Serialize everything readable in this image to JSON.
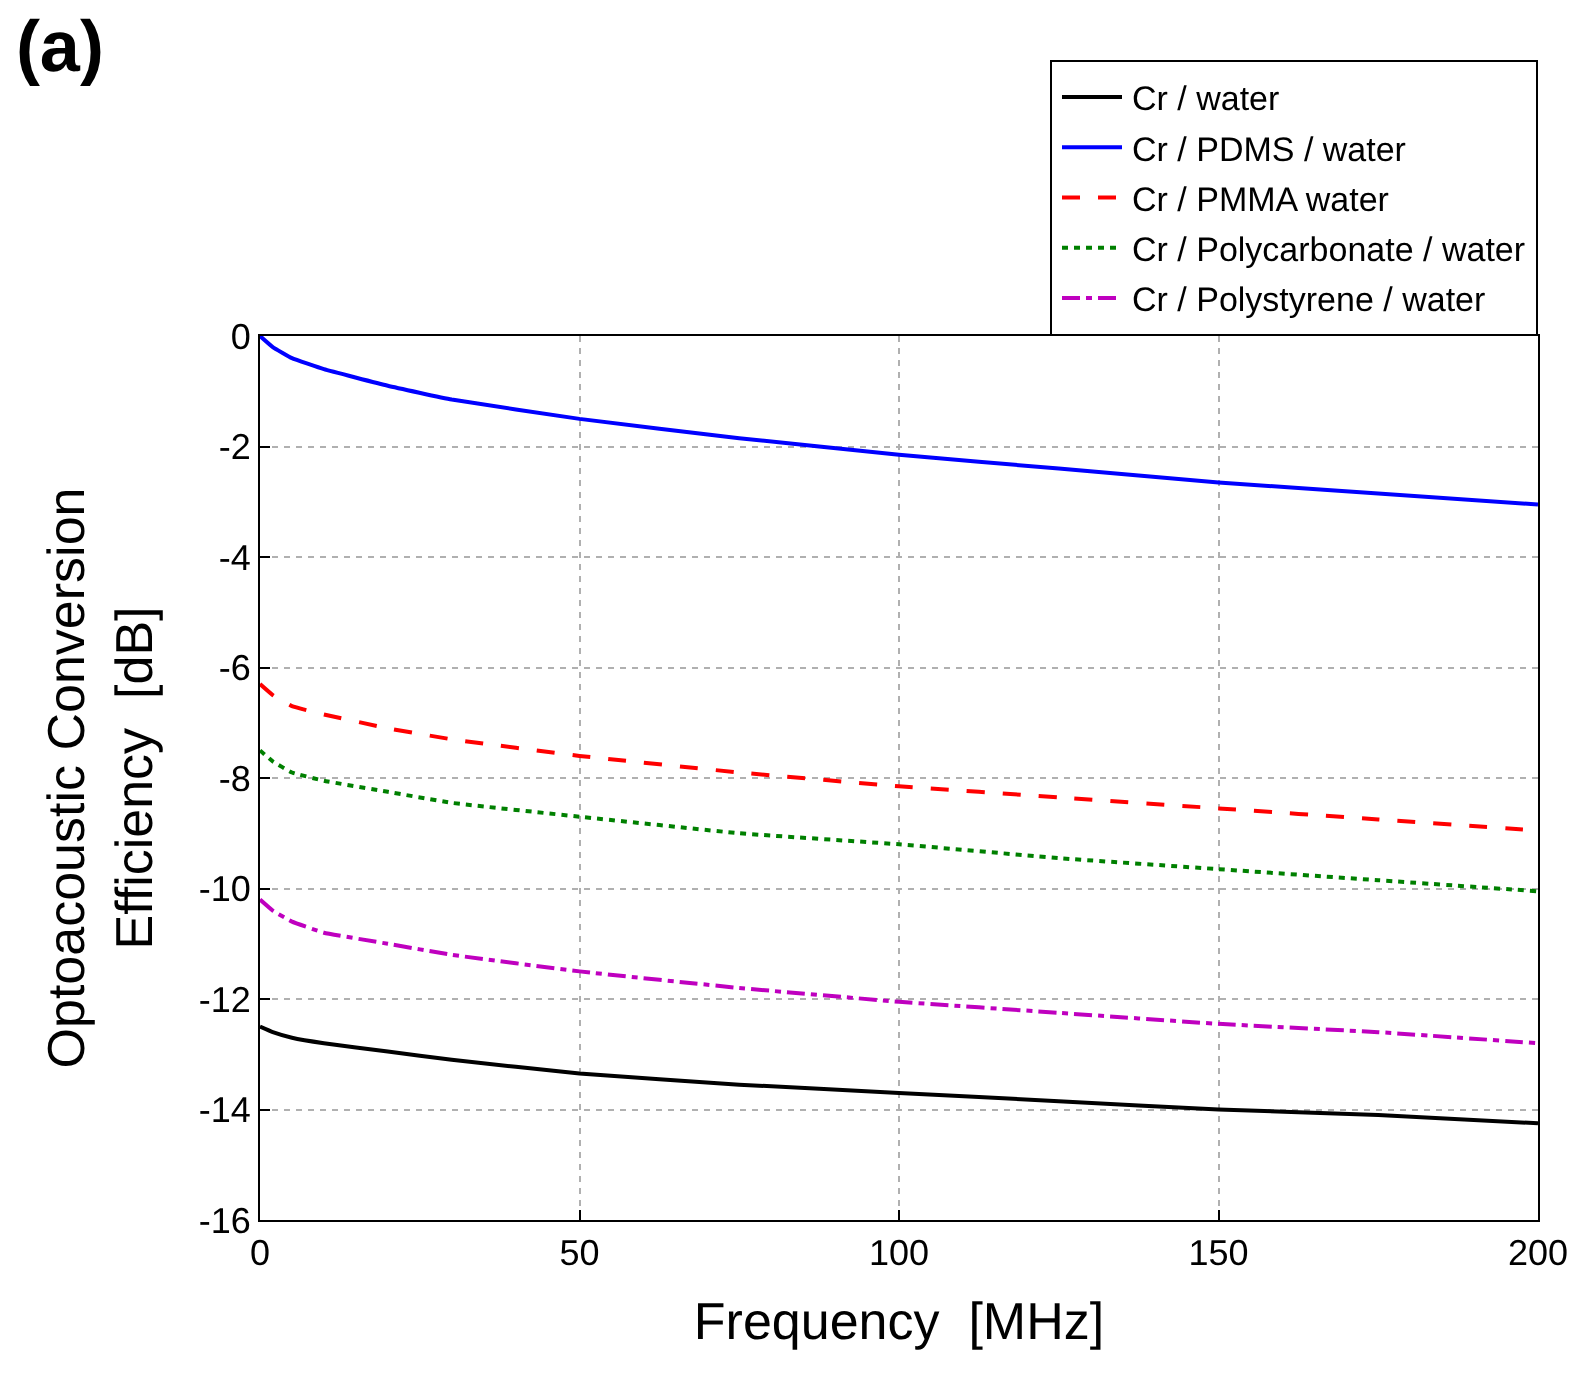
{
  "chart_data": {
    "type": "line",
    "title": "(a)",
    "xlabel": "Frequency  [MHz]",
    "ylabel": "Optoacoustic Conversion\nEfficiency  [dB]",
    "xlim": [
      0,
      200
    ],
    "xticks": [
      0,
      50,
      100,
      150,
      200
    ],
    "ylim": [
      -16,
      0
    ],
    "yticks": [
      -16,
      -14,
      -12,
      -10,
      -8,
      -6,
      -4,
      -2,
      0
    ],
    "grid": true,
    "legend": "top right",
    "marker": "none",
    "x": [
      0,
      2,
      5,
      10,
      20,
      30,
      50,
      75,
      100,
      125,
      150,
      175,
      200
    ],
    "series": [
      {
        "name": "Cr / water",
        "color": "#000000",
        "line_style": "solid",
        "values": [
          -12.5,
          -12.6,
          -12.7,
          -12.8,
          -12.95,
          -13.1,
          -13.35,
          -13.55,
          -13.7,
          -13.85,
          -14.0,
          -14.1,
          -14.25
        ]
      },
      {
        "name": "Cr / PDMS / water",
        "color": "#0000ff",
        "line_style": "solid",
        "values": [
          0,
          -0.2,
          -0.4,
          -0.6,
          -0.9,
          -1.15,
          -1.5,
          -1.85,
          -2.15,
          -2.4,
          -2.65,
          -2.85,
          -3.05
        ]
      },
      {
        "name": "Cr / PMMA water",
        "color": "#ff0000",
        "line_style": "dashed",
        "values": [
          -6.3,
          -6.5,
          -6.7,
          -6.85,
          -7.1,
          -7.3,
          -7.6,
          -7.9,
          -8.15,
          -8.35,
          -8.55,
          -8.75,
          -8.95
        ]
      },
      {
        "name": "Cr / Polycarbonate / water",
        "color": "#008000",
        "line_style": "dotted",
        "values": [
          -7.5,
          -7.7,
          -7.9,
          -8.05,
          -8.25,
          -8.45,
          -8.7,
          -9.0,
          -9.2,
          -9.45,
          -9.65,
          -9.85,
          -10.05
        ]
      },
      {
        "name": "Cr / Polystyrene / water",
        "color": "#bf00bf",
        "line_style": "dashdot",
        "values": [
          -10.2,
          -10.4,
          -10.6,
          -10.8,
          -11.0,
          -11.2,
          -11.5,
          -11.8,
          -12.05,
          -12.25,
          -12.45,
          -12.6,
          -12.8
        ]
      }
    ]
  }
}
